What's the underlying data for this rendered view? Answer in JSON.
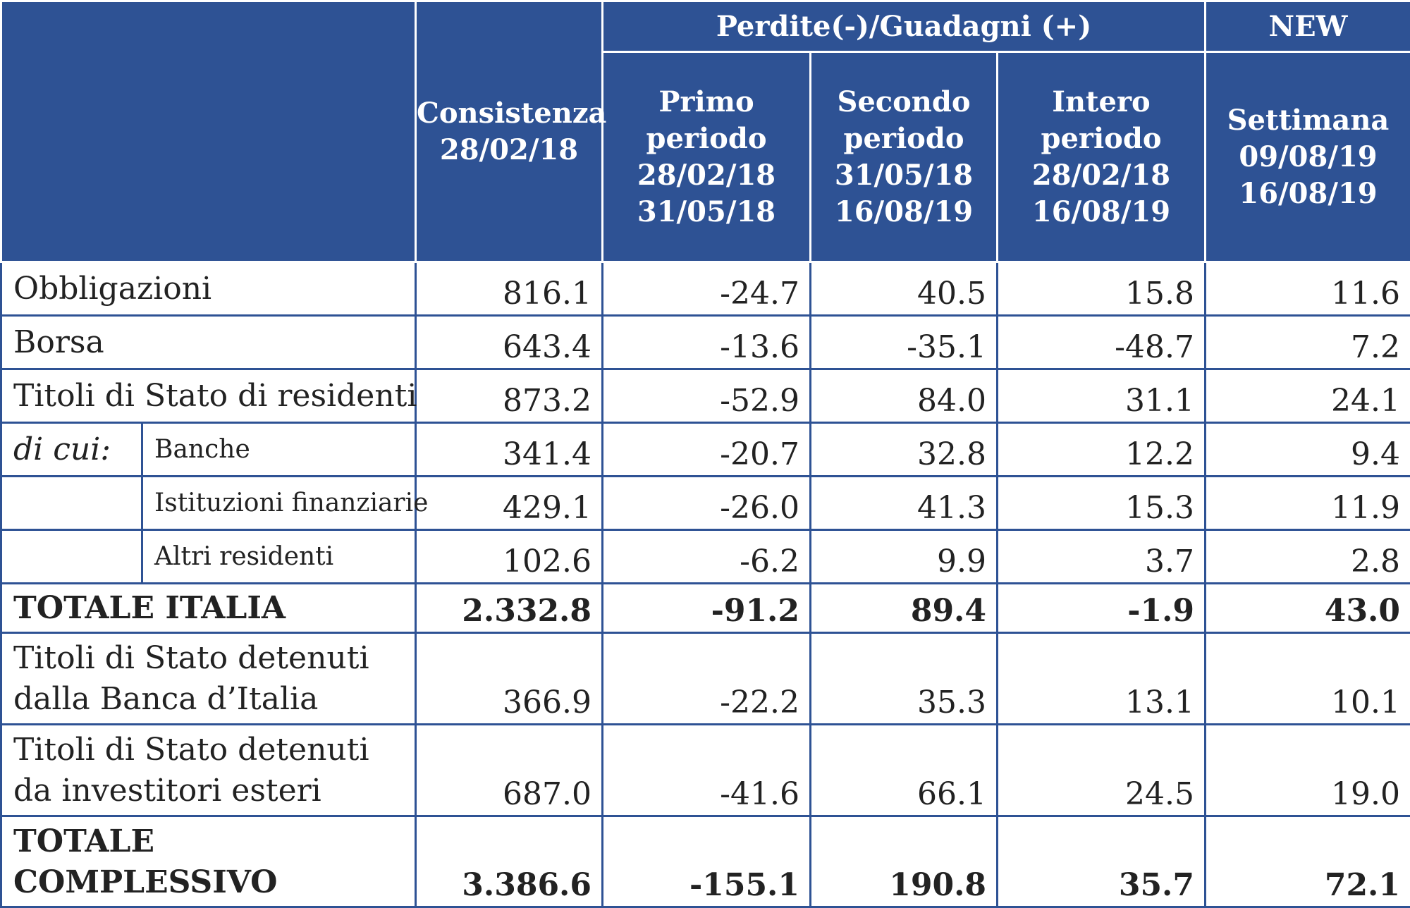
{
  "header": {
    "group_losses": "Perdite(-)/Guadagni (+)",
    "group_new": "NEW",
    "cols": [
      "Consistenza\n28/02/18",
      "Primo\nperiodo\n28/02/18\n31/05/18",
      "Secondo\nperiodo\n31/05/18\n16/08/19",
      "Intero\nperiodo\n28/02/18\n16/08/19",
      "Settimana\n09/08/19\n16/08/19"
    ]
  },
  "di_cui": "di cui:",
  "rows": [
    {
      "label": "Obbligazioni",
      "values": [
        "816.1",
        "-24.7",
        "40.5",
        "15.8",
        "11.6"
      ]
    },
    {
      "label": "Borsa",
      "values": [
        "643.4",
        "-13.6",
        "-35.1",
        "-48.7",
        "7.2"
      ]
    },
    {
      "label": "Titoli di Stato di residenti",
      "values": [
        "873.2",
        "-52.9",
        "84.0",
        "31.1",
        "24.1"
      ]
    },
    {
      "label": "Banche",
      "values": [
        "341.4",
        "-20.7",
        "32.8",
        "12.2",
        "9.4"
      ]
    },
    {
      "label": "Istituzioni finanziarie",
      "values": [
        "429.1",
        "-26.0",
        "41.3",
        "15.3",
        "11.9"
      ]
    },
    {
      "label": "Altri residenti",
      "values": [
        "102.6",
        "-6.2",
        "9.9",
        "3.7",
        "2.8"
      ]
    },
    {
      "label": "TOTALE ITALIA",
      "values": [
        "2.332.8",
        "-91.2",
        "89.4",
        "-1.9",
        "43.0"
      ]
    },
    {
      "label": "Titoli di Stato detenuti dalla Banca d’Italia",
      "values": [
        "366.9",
        "-22.2",
        "35.3",
        "13.1",
        "10.1"
      ]
    },
    {
      "label": "Titoli di Stato detenuti da investitori esteri",
      "values": [
        "687.0",
        "-41.6",
        "66.1",
        "24.5",
        "19.0"
      ]
    },
    {
      "label": "TOTALE\nCOMPLESSIVO",
      "values": [
        "3.386.6",
        "-155.1",
        "190.8",
        "35.7",
        "72.1"
      ]
    }
  ]
}
